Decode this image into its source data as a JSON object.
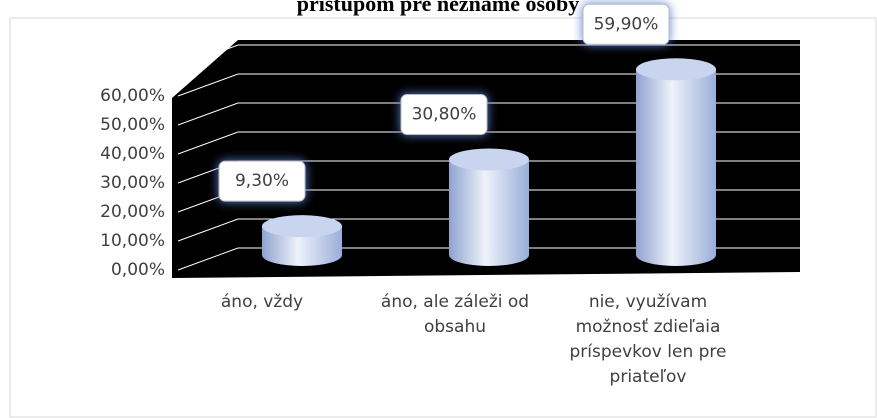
{
  "chart_data": {
    "type": "bar",
    "title": "prístupom pre neznáme osoby",
    "categories": [
      "áno, vždy",
      "áno, ale záleži od obsahu",
      "nie, využívam možnosť zdieľaia príspevkov len pre priateľov"
    ],
    "values": [
      9.3,
      30.8,
      59.9
    ],
    "value_labels": [
      "9,30%",
      "30,80%",
      "59,90%"
    ],
    "ylim": [
      0,
      70
    ],
    "yticks": [
      {
        "value": 0,
        "label": "0,00%"
      },
      {
        "value": 10,
        "label": "10,00%"
      },
      {
        "value": 20,
        "label": "20,00%"
      },
      {
        "value": 30,
        "label": "30,00%"
      },
      {
        "value": 40,
        "label": "40,00%"
      },
      {
        "value": 50,
        "label": "50,00%"
      },
      {
        "value": 60,
        "label": "60,00%"
      }
    ],
    "grid": true
  }
}
